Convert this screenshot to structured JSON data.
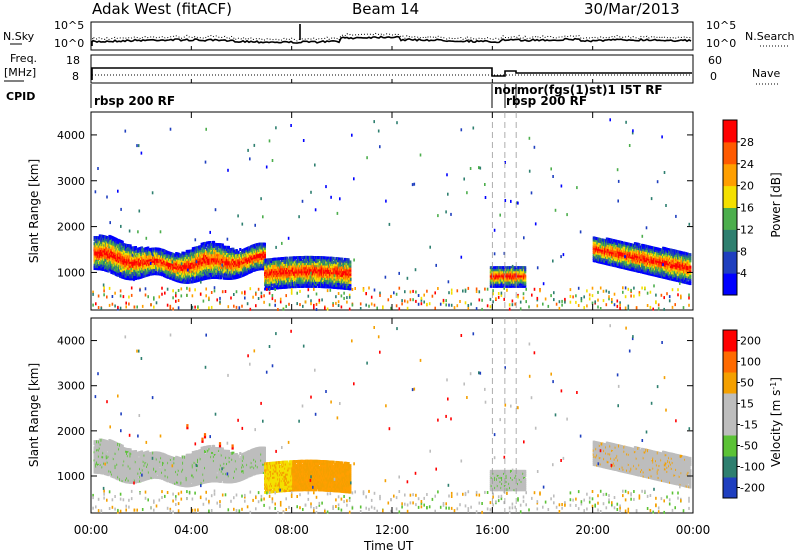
{
  "header": {
    "station": "Adak West (fitACF)",
    "beam": "Beam 14",
    "date": "30/Mar/2013"
  },
  "summary": {
    "nsky_label": "N.Sky",
    "nsearch_label": "N.Search",
    "nave_label": "Nave",
    "freq_label_1": "Freq.",
    "freq_label_2": "[MHz]",
    "cpid_label": "CPID",
    "left_scale_top": "10^5",
    "left_scale_bottom": "10^0",
    "right_scale_top": "10^5",
    "right_scale_bottom": "10^0",
    "freq_tick_top": "18",
    "freq_tick_bottom": "8",
    "nave_tick_top": "60",
    "nave_tick_bottom": "0",
    "cpid_text_1": "rbsp 200 RF",
    "cpid_text_2": "normor(fgs(1)st)1 I5T RF",
    "cpid_text_3": "rbsp 200 RF"
  },
  "chart_data": [
    {
      "type": "heatmap",
      "name": "Power",
      "ylabel": "Slant Range [km]",
      "xlabel": "Time UT",
      "x_ticks": [
        "00:00",
        "04:00",
        "08:00",
        "12:00",
        "16:00",
        "20:00",
        "00:00"
      ],
      "y_ticks": [
        1000,
        2000,
        3000,
        4000
      ],
      "ylim": [
        180,
        4500
      ],
      "colorbar_label": "Power [dB]",
      "colorbar_ticks": [
        "4",
        "8",
        "12",
        "16",
        "20",
        "24",
        "28"
      ],
      "colorbar_colors": [
        "#0000ff",
        "#1f3fbf",
        "#2e7f6f",
        "#4cae4c",
        "#f4e000",
        "#ff9f00",
        "#ff5a00",
        "#ff0000"
      ]
    },
    {
      "type": "heatmap",
      "name": "Velocity",
      "ylabel": "Slant Range [km]",
      "xlabel": "Time UT",
      "x_ticks": [
        "00:00",
        "04:00",
        "08:00",
        "12:00",
        "16:00",
        "20:00",
        "00:00"
      ],
      "y_ticks": [
        1000,
        2000,
        3000,
        4000
      ],
      "ylim": [
        180,
        4500
      ],
      "colorbar_label": "Velocity [m s^-1]",
      "colorbar_ticks": [
        "200",
        "100",
        "50",
        "15",
        "-15",
        "-50",
        "-100",
        "-200"
      ],
      "colorbar_colors": [
        "#1f3fbf",
        "#2e7f6f",
        "#5bc236",
        "#bdbdbd",
        "#bdbdbd",
        "#f4a000",
        "#ff6a00",
        "#ff0000"
      ]
    }
  ]
}
